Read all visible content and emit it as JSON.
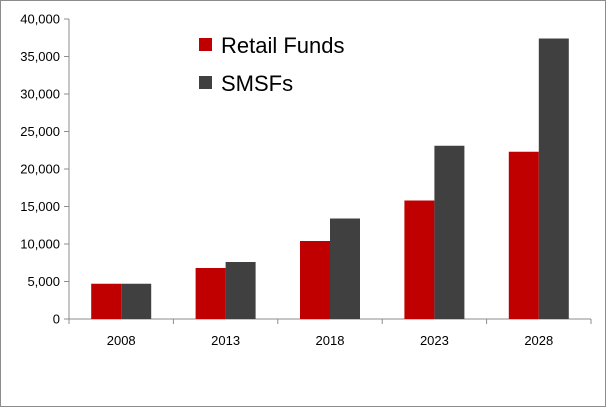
{
  "chart_data": {
    "type": "bar",
    "categories": [
      "2008",
      "2013",
      "2018",
      "2023",
      "2028"
    ],
    "series": [
      {
        "name": "Retail Funds",
        "color": "#c00000",
        "values": [
          4700,
          6800,
          10400,
          15800,
          22300
        ]
      },
      {
        "name": "SMSFs",
        "color": "#404040",
        "values": [
          4700,
          7600,
          13400,
          23100,
          37400
        ]
      }
    ],
    "ylim": [
      0,
      40000
    ],
    "yticks": [
      "0",
      "5,000",
      "10,000",
      "15,000",
      "20,000",
      "25,000",
      "30,000",
      "35,000",
      "40,000"
    ],
    "grid": false,
    "legend_position": "top-left inside plot",
    "title": "",
    "xlabel": "",
    "ylabel": ""
  }
}
